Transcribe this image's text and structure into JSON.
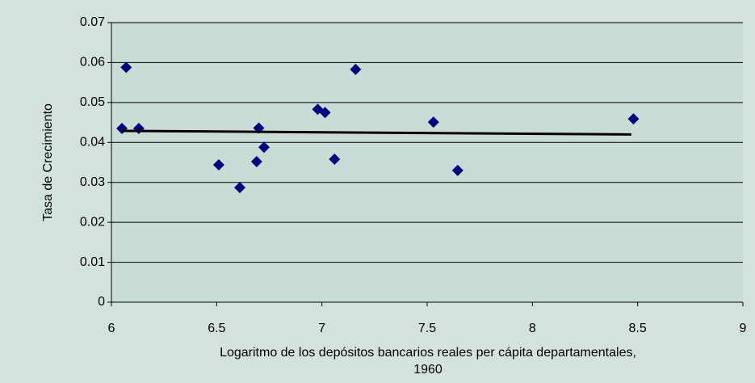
{
  "chart_data": {
    "type": "scatter",
    "xlabel": [
      "Logaritmo de los depósitos bancarios reales per cápita departamentales,",
      "1960"
    ],
    "ylabel": "Tasa de Crecimiento",
    "series": [
      {
        "color": "#000080",
        "x": [
          6.05,
          6.07,
          6.13,
          6.51,
          6.61,
          6.69,
          6.7,
          6.725,
          6.98,
          7.015,
          7.06,
          7.16,
          7.53,
          7.645,
          8.48
        ],
        "values": [
          0.0435,
          0.0588,
          0.0435,
          0.0344,
          0.0287,
          0.0352,
          0.0436,
          0.0388,
          0.0483,
          0.0475,
          0.0358,
          0.0583,
          0.0451,
          0.033,
          0.0459
        ]
      }
    ],
    "trendline": {
      "color": "#000000",
      "x": [
        6.05,
        8.47
      ],
      "values": [
        0.0429,
        0.042
      ]
    },
    "xlim": [
      6,
      9
    ],
    "xticks": [
      6,
      6.5,
      7,
      7.5,
      8,
      8.5,
      9
    ],
    "ylim": [
      0,
      0.07
    ],
    "yticks": [
      0,
      0.01,
      0.02,
      0.03,
      0.04,
      0.05,
      0.06,
      0.07
    ],
    "grid": true
  }
}
